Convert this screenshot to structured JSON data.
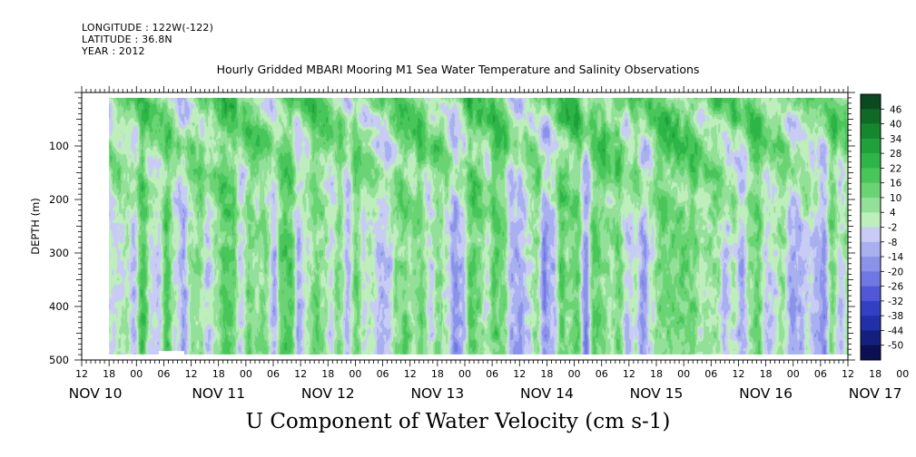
{
  "header": {
    "longitude": "LONGITUDE : 122W(-122)",
    "latitude": "LATITUDE : 36.8N",
    "year": "YEAR : 2012",
    "title": "Hourly Gridded MBARI Mooring M1 Sea Water Temperature and Salinity Observations"
  },
  "footer": {
    "title": "U Component of Water Velocity (cm s-1)"
  },
  "chart_data": {
    "type": "heatmap",
    "title": "Hourly Gridded MBARI Mooring M1 Sea Water Temperature and Salinity Observations",
    "xlabel": "",
    "ylabel": "DEPTH (m)",
    "colorbar_label": "U Component of Water Velocity (cm s-1)",
    "y_ticks": [
      100,
      200,
      300,
      400,
      500
    ],
    "y_range": [
      10,
      500
    ],
    "y_reversed": true,
    "x_hour_ticks": [
      "12",
      "18",
      "00",
      "06",
      "12",
      "18",
      "00",
      "06",
      "12",
      "18",
      "00",
      "06",
      "12",
      "18",
      "00",
      "06",
      "12",
      "18",
      "00",
      "06",
      "12",
      "18",
      "00",
      "06",
      "12",
      "18",
      "00",
      "06",
      "12",
      "18",
      "00",
      "06",
      "12"
    ],
    "x_day_labels": [
      "NOV 10",
      "NOV 11",
      "NOV 12",
      "NOV 13",
      "NOV 14",
      "NOV 15",
      "NOV 16",
      "NOV 17"
    ],
    "x_range_hours": [
      0,
      168
    ],
    "data_start_hour": 6,
    "colorbar_levels": [
      "46",
      "40",
      "34",
      "28",
      "22",
      "16",
      "10",
      "4",
      "-2",
      "-8",
      "-14",
      "-20",
      "-26",
      "-32",
      "-38",
      "-44",
      "-50"
    ],
    "colorbar_colors": [
      "#0b4a1e",
      "#0f6a26",
      "#15872f",
      "#1fa03a",
      "#2db548",
      "#49c65a",
      "#6ad474",
      "#93e098",
      "#bdeebc",
      "#c8ccf5",
      "#a8b0f0",
      "#8a92ea",
      "#6f78e2",
      "#5058d6",
      "#3440c4",
      "#2030a8",
      "#14207e",
      "#0a1050"
    ],
    "field_description": "positive (green) dominant above 250 m with diagonal bands; negative (blue) vertical columns below"
  }
}
